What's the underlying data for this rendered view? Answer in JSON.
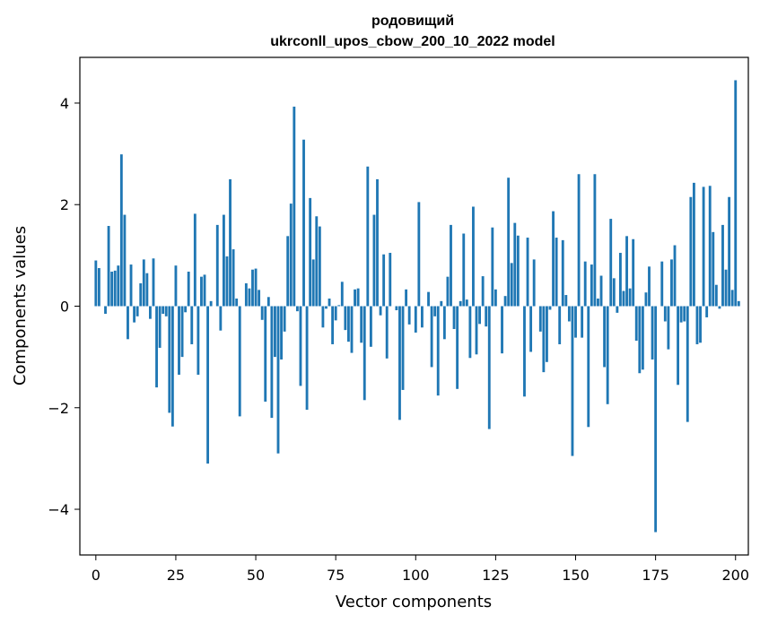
{
  "chart_data": {
    "type": "bar",
    "title": "родовищий",
    "subtitle": "ukrconll_upos_cbow_200_10_2022 model",
    "xlabel": "Vector components",
    "ylabel": "Components values",
    "xlim": [
      -5,
      204
    ],
    "ylim": [
      -4.9,
      4.9
    ],
    "xticks": [
      0,
      25,
      50,
      75,
      100,
      125,
      150,
      175,
      200
    ],
    "yticks": [
      -4,
      -2,
      0,
      2,
      4
    ],
    "ytick_labels": [
      "−4",
      "−2",
      "0",
      "2",
      "4"
    ],
    "grid": false,
    "color": "#1f77b4",
    "values": [
      0.9,
      0.75,
      0.0,
      -0.15,
      1.58,
      0.68,
      0.7,
      0.8,
      2.99,
      1.8,
      -0.65,
      0.82,
      -0.32,
      -0.2,
      0.45,
      0.92,
      0.65,
      -0.25,
      0.94,
      -1.6,
      -0.82,
      -0.15,
      -0.2,
      -2.1,
      -2.37,
      0.8,
      -1.35,
      -1.0,
      -0.12,
      0.68,
      -0.75,
      1.82,
      -1.35,
      0.58,
      0.62,
      -3.1,
      0.1,
      0.0,
      1.6,
      -0.48,
      1.8,
      0.98,
      2.5,
      1.12,
      0.15,
      -2.17,
      0.0,
      0.45,
      0.35,
      0.72,
      0.74,
      0.32,
      -0.27,
      -1.88,
      0.18,
      -2.2,
      -1.0,
      -2.9,
      -1.05,
      -0.5,
      1.38,
      2.02,
      3.93,
      -0.1,
      -1.57,
      3.28,
      -2.04,
      2.13,
      0.92,
      1.77,
      1.57,
      -0.42,
      -0.05,
      0.15,
      -0.75,
      -0.28,
      0.02,
      0.48,
      -0.47,
      -0.7,
      -0.92,
      0.33,
      0.35,
      -0.72,
      -1.85,
      2.75,
      -0.8,
      1.8,
      2.5,
      -0.18,
      1.02,
      -1.03,
      1.05,
      0.0,
      -0.08,
      -2.24,
      -1.65,
      0.33,
      -0.36,
      0.0,
      -0.52,
      2.05,
      -0.42,
      0.0,
      0.28,
      -1.2,
      -0.2,
      -1.76,
      0.1,
      -0.65,
      0.58,
      1.6,
      -0.45,
      -1.63,
      0.1,
      1.43,
      0.13,
      -1.02,
      1.96,
      -0.95,
      -0.35,
      0.59,
      -0.4,
      -2.42,
      1.55,
      0.33,
      0.0,
      -0.93,
      0.2,
      2.53,
      0.85,
      1.64,
      1.39,
      0.0,
      -1.78,
      1.35,
      -0.9,
      0.92,
      0.0,
      -0.5,
      -1.3,
      -1.1,
      -0.07,
      1.87,
      1.35,
      -0.75,
      1.3,
      0.22,
      -0.3,
      -2.95,
      -0.62,
      2.6,
      -0.62,
      0.88,
      -2.38,
      0.82,
      2.6,
      0.15,
      0.6,
      -1.2,
      -1.93,
      1.72,
      0.55,
      -0.13,
      1.05,
      0.3,
      1.38,
      0.35,
      1.32,
      -0.68,
      -1.32,
      -1.25,
      0.27,
      0.78,
      -1.05,
      -4.45,
      0.0,
      0.88,
      -0.3,
      -0.85,
      0.92,
      1.2,
      -1.55,
      -0.32,
      -0.3,
      -2.28,
      2.15,
      2.43,
      -0.75,
      -0.72,
      2.35,
      -0.22,
      2.37,
      1.46,
      0.42,
      -0.05,
      1.6,
      0.72,
      2.15,
      0.32,
      4.45,
      0.1
    ]
  }
}
